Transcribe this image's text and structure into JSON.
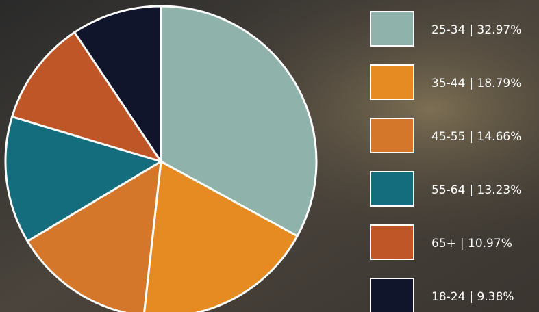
{
  "chart_data": {
    "type": "pie",
    "categories": [
      "25-34",
      "35-44",
      "45-55",
      "55-64",
      "65+",
      "18-24"
    ],
    "values": [
      32.97,
      18.79,
      14.66,
      13.23,
      10.97,
      9.38
    ],
    "value_labels": [
      "| 32.97%",
      "| 18.79%",
      "| 14.66%",
      "| 13.23%",
      "| 10.97%",
      "| 9.38%"
    ],
    "colors": [
      "#8fb3aa",
      "#e68a22",
      "#d4772a",
      "#136d7c",
      "#bf5627",
      "#10152b"
    ]
  }
}
